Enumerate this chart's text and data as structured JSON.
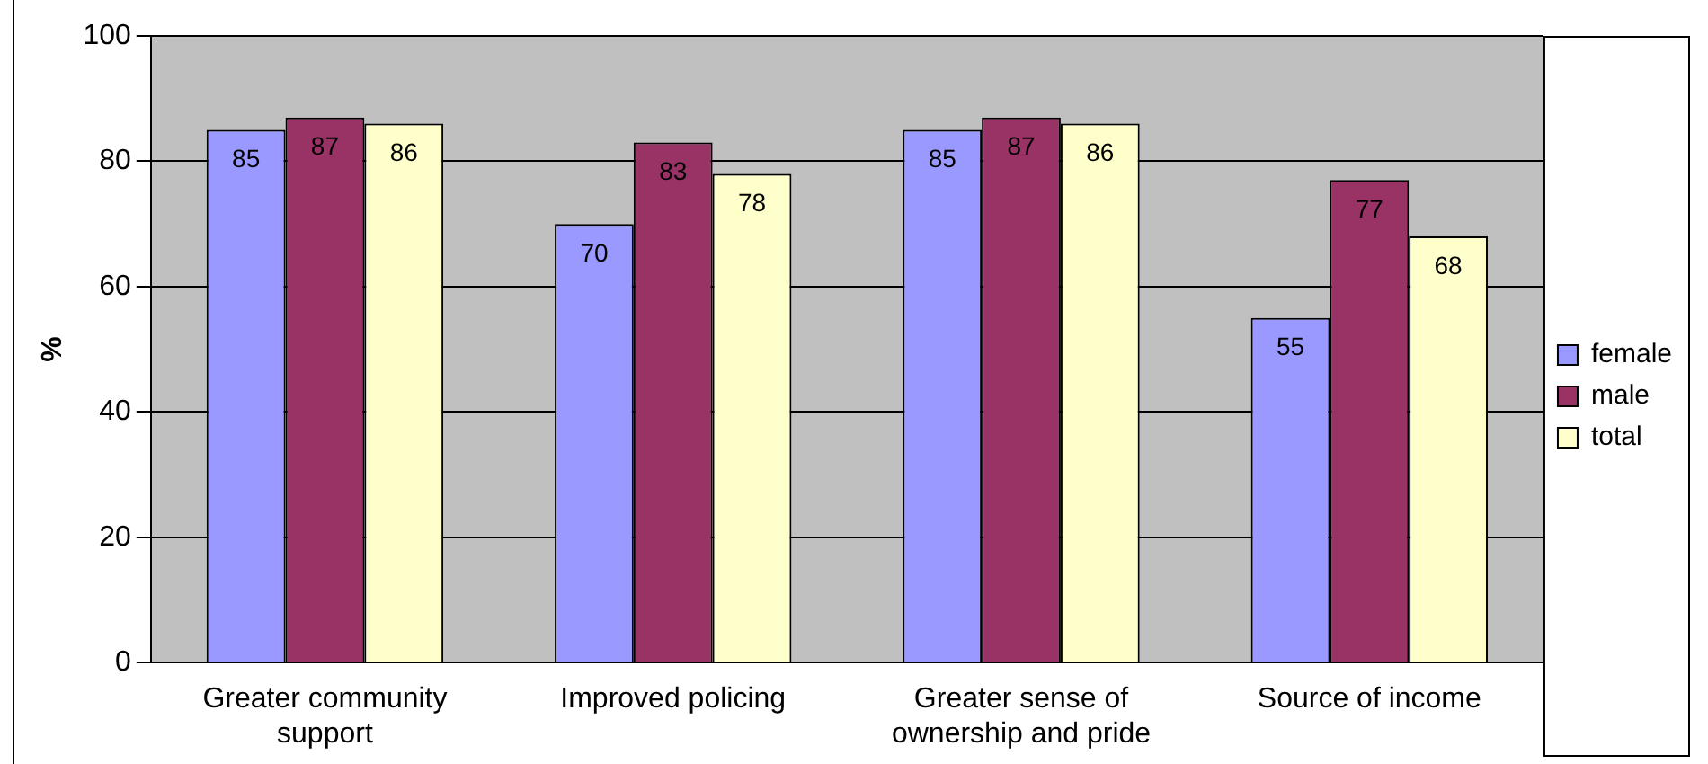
{
  "chart_data": {
    "type": "bar",
    "ylabel": "%",
    "categories": [
      "Greater community support",
      "Improved policing",
      "Greater sense of ownership and pride",
      "Source of income"
    ],
    "series": [
      {
        "name": "female",
        "color": "#9999ff",
        "values": [
          85,
          70,
          85,
          55
        ]
      },
      {
        "name": "male",
        "color": "#993366",
        "values": [
          87,
          83,
          87,
          77
        ]
      },
      {
        "name": "total",
        "color": "#ffffcc",
        "values": [
          86,
          78,
          86,
          68
        ]
      }
    ],
    "ylim": [
      0,
      100
    ],
    "yticks": [
      0,
      20,
      40,
      60,
      80,
      100
    ],
    "grid": "y",
    "legend": "right",
    "data_labels": true
  }
}
